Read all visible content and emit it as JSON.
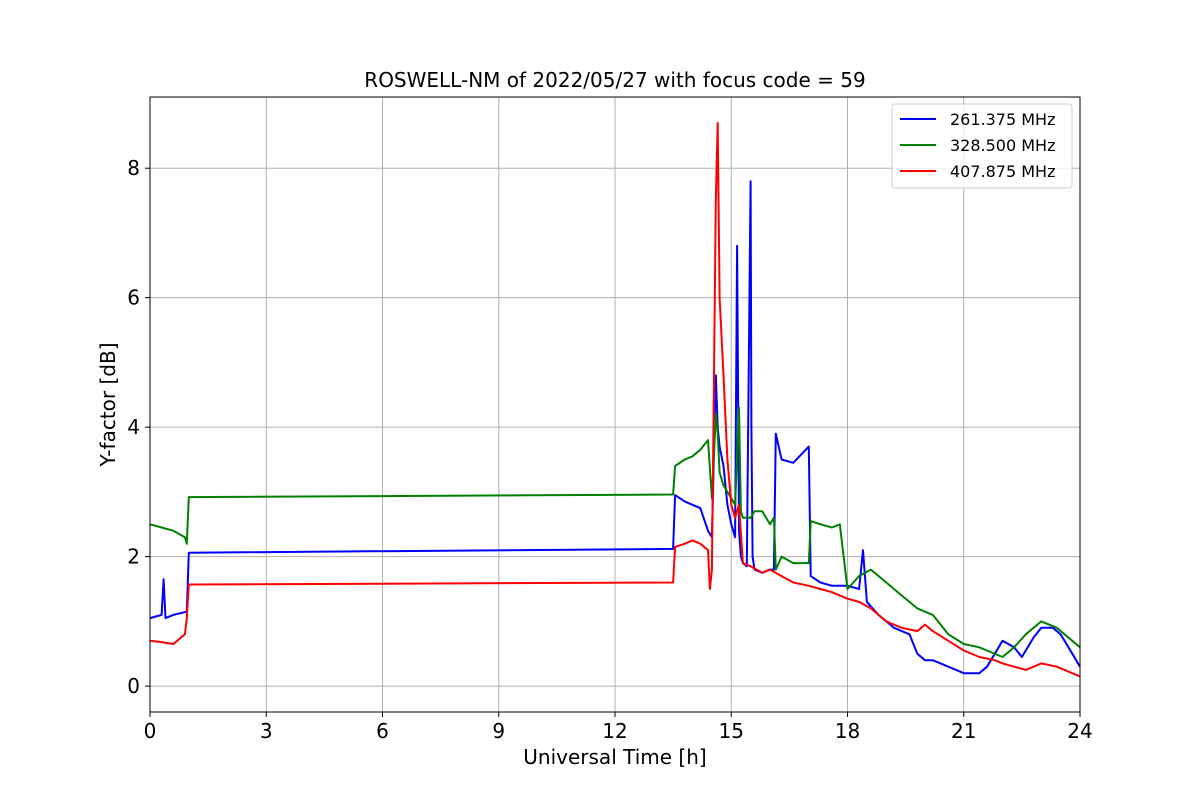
{
  "chart_data": {
    "type": "line",
    "title": "ROSWELL-NM of 2022/05/27 with focus code = 59",
    "xlabel": "Universal Time [h]",
    "ylabel": "Y-factor [dB]",
    "xlim": [
      0,
      24
    ],
    "ylim": [
      -0.4,
      9.1
    ],
    "xticks": [
      0,
      3,
      6,
      9,
      12,
      15,
      18,
      21,
      24
    ],
    "yticks": [
      0,
      2,
      4,
      6,
      8
    ],
    "grid": true,
    "legend_position": "top-right",
    "series": [
      {
        "name": "261.375 MHz",
        "color": "#0000ff",
        "x": [
          0,
          0.3,
          0.35,
          0.4,
          0.6,
          0.95,
          1.0,
          13.5,
          13.55,
          13.8,
          14.0,
          14.2,
          14.4,
          14.5,
          14.55,
          14.6,
          14.65,
          14.7,
          14.8,
          14.9,
          15.0,
          15.1,
          15.15,
          15.2,
          15.25,
          15.3,
          15.4,
          15.5,
          15.52,
          15.55,
          15.6,
          15.8,
          16.0,
          16.1,
          16.15,
          16.3,
          16.6,
          17.0,
          17.05,
          17.3,
          17.6,
          18.0,
          18.3,
          18.4,
          18.5,
          18.8,
          19.2,
          19.6,
          19.8,
          20.0,
          20.2,
          20.6,
          21.0,
          21.4,
          21.6,
          21.8,
          22.0,
          22.3,
          22.5,
          22.8,
          23.0,
          23.3,
          23.5,
          23.8,
          24.0
        ],
        "y": [
          1.05,
          1.1,
          1.65,
          1.05,
          1.1,
          1.15,
          2.06,
          2.12,
          2.95,
          2.85,
          2.8,
          2.75,
          2.4,
          2.3,
          3.5,
          4.8,
          4.0,
          3.7,
          3.4,
          2.8,
          2.5,
          2.3,
          6.8,
          2.4,
          2.0,
          1.9,
          1.85,
          7.8,
          4.0,
          2.0,
          1.8,
          1.75,
          1.8,
          1.8,
          3.9,
          3.5,
          3.45,
          3.7,
          1.7,
          1.6,
          1.55,
          1.55,
          1.5,
          2.1,
          1.3,
          1.1,
          0.9,
          0.8,
          0.5,
          0.4,
          0.4,
          0.3,
          0.2,
          0.2,
          0.3,
          0.5,
          0.7,
          0.6,
          0.45,
          0.75,
          0.9,
          0.9,
          0.8,
          0.5,
          0.3
        ]
      },
      {
        "name": "328.500 MHz",
        "color": "#008000",
        "x": [
          0,
          0.3,
          0.6,
          0.9,
          0.95,
          1.0,
          13.5,
          13.55,
          13.8,
          14.0,
          14.2,
          14.4,
          14.5,
          14.55,
          14.6,
          14.65,
          14.7,
          14.8,
          14.9,
          15.0,
          15.1,
          15.2,
          15.25,
          15.3,
          15.5,
          15.6,
          15.8,
          16.0,
          16.1,
          16.15,
          16.3,
          16.6,
          17.0,
          17.05,
          17.3,
          17.6,
          17.8,
          18.0,
          18.3,
          18.6,
          19.0,
          19.4,
          19.8,
          20.2,
          20.6,
          21.0,
          21.4,
          21.6,
          22.0,
          22.3,
          22.6,
          23.0,
          23.4,
          23.8,
          24.0
        ],
        "y": [
          2.5,
          2.45,
          2.4,
          2.3,
          2.2,
          2.92,
          2.96,
          3.4,
          3.5,
          3.55,
          3.65,
          3.8,
          2.9,
          3.5,
          4.2,
          3.9,
          3.3,
          3.1,
          3.0,
          2.9,
          2.8,
          4.3,
          2.7,
          2.6,
          2.6,
          2.7,
          2.7,
          2.5,
          2.6,
          1.8,
          2.0,
          1.9,
          1.9,
          2.55,
          2.5,
          2.45,
          2.5,
          1.5,
          1.7,
          1.8,
          1.6,
          1.4,
          1.2,
          1.1,
          0.8,
          0.65,
          0.6,
          0.55,
          0.45,
          0.6,
          0.8,
          1.0,
          0.9,
          0.7,
          0.6
        ]
      },
      {
        "name": "407.875 MHz",
        "color": "#ff0000",
        "x": [
          0,
          0.3,
          0.6,
          0.9,
          0.95,
          1.0,
          13.5,
          13.55,
          13.8,
          14.0,
          14.2,
          14.4,
          14.45,
          14.5,
          14.55,
          14.6,
          14.65,
          14.7,
          14.8,
          14.9,
          15.0,
          15.1,
          15.2,
          15.3,
          15.5,
          15.8,
          16.0,
          16.3,
          16.6,
          17.0,
          17.3,
          17.6,
          18.0,
          18.3,
          18.6,
          19.0,
          19.4,
          19.8,
          20.0,
          20.2,
          20.6,
          21.0,
          21.4,
          21.8,
          22.0,
          22.3,
          22.6,
          23.0,
          23.4,
          23.8,
          24.0
        ],
        "y": [
          0.7,
          0.68,
          0.65,
          0.8,
          1.05,
          1.57,
          1.6,
          2.15,
          2.2,
          2.25,
          2.2,
          2.1,
          1.5,
          1.8,
          4.5,
          7.5,
          8.7,
          6.0,
          4.8,
          3.5,
          2.8,
          2.6,
          2.8,
          1.9,
          1.85,
          1.75,
          1.8,
          1.7,
          1.6,
          1.55,
          1.5,
          1.45,
          1.35,
          1.3,
          1.2,
          1.0,
          0.9,
          0.85,
          0.95,
          0.85,
          0.7,
          0.55,
          0.45,
          0.4,
          0.35,
          0.3,
          0.25,
          0.35,
          0.3,
          0.2,
          0.15
        ]
      }
    ]
  }
}
